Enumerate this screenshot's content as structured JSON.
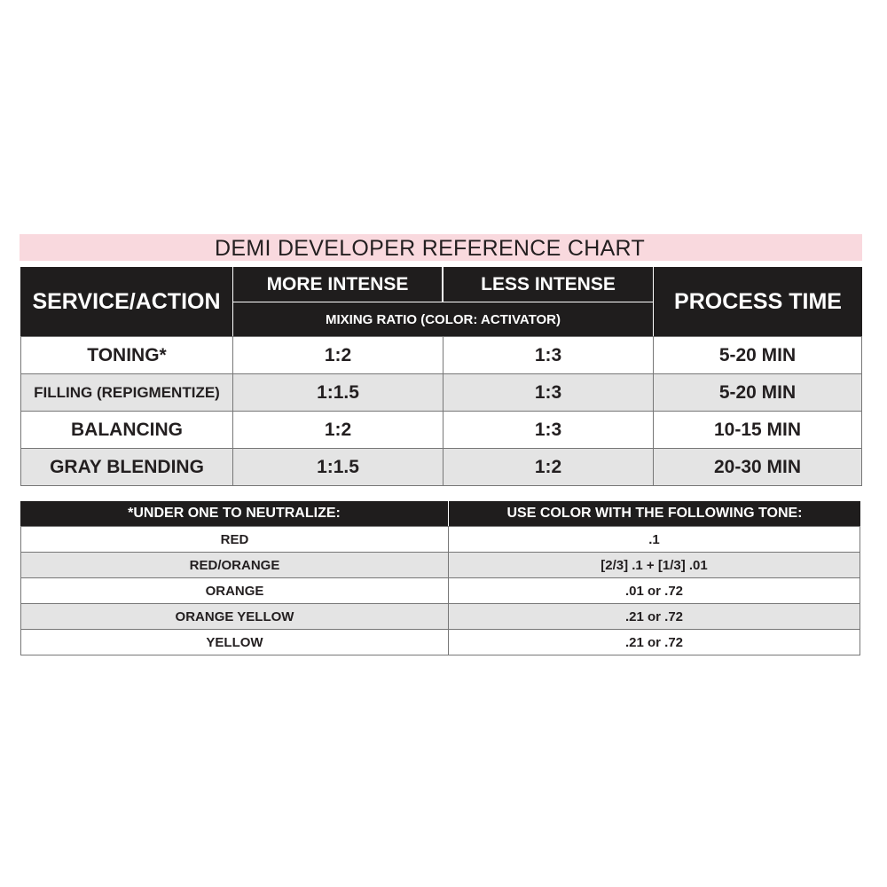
{
  "title": "DEMI DEVELOPER REFERENCE CHART",
  "main_table": {
    "headers": {
      "service": "SERVICE/ACTION",
      "more": "MORE INTENSE",
      "less": "LESS INTENSE",
      "mixing": "MIXING RATIO (COLOR: ACTIVATOR)",
      "time": "PROCESS TIME"
    },
    "rows": [
      {
        "service": "TONING*",
        "more": "1:2",
        "less": "1:3",
        "time": "5-20 MIN"
      },
      {
        "service": "FILLING (REPIGMENTIZE)",
        "more": "1:1.5",
        "less": "1:3",
        "time": "5-20 MIN"
      },
      {
        "service": "BALANCING",
        "more": "1:2",
        "less": "1:3",
        "time": "10-15  MIN"
      },
      {
        "service": "GRAY BLENDING",
        "more": "1:1.5",
        "less": "1:2",
        "time": "20-30 MIN"
      }
    ]
  },
  "tone_table": {
    "headers": {
      "under": "*UNDER ONE TO NEUTRALIZE:",
      "tone": "USE COLOR WITH THE FOLLOWING TONE:"
    },
    "rows": [
      {
        "under": "RED",
        "tone": ".1"
      },
      {
        "under": "RED/ORANGE",
        "tone": "[2/3] .1 + [1/3] .01"
      },
      {
        "under": "ORANGE",
        "tone": ".01 or .72"
      },
      {
        "under": "ORANGE YELLOW",
        "tone": ".21 or .72"
      },
      {
        "under": "YELLOW",
        "tone": ".21 or .72"
      }
    ]
  }
}
